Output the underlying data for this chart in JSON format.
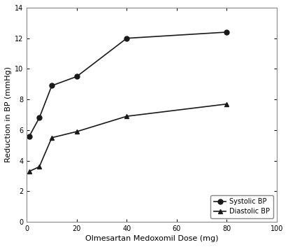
{
  "xlabel": "Olmesartan Medoxomil Dose (mg)",
  "ylabel": "Reduction in BP (mmHg)",
  "systolic": {
    "x": [
      1,
      5,
      10,
      20,
      40,
      80
    ],
    "y": [
      5.6,
      6.8,
      8.9,
      9.5,
      12.0,
      12.4
    ],
    "label": "Systolic BP",
    "marker": "o"
  },
  "diastolic": {
    "x": [
      1,
      5,
      10,
      20,
      40,
      80
    ],
    "y": [
      3.3,
      3.6,
      5.5,
      5.9,
      6.9,
      7.7
    ],
    "label": "Diastolic BP",
    "marker": "^"
  },
  "xlim": [
    0,
    100
  ],
  "ylim": [
    0,
    14
  ],
  "xticks": [
    0,
    20,
    40,
    60,
    80,
    100
  ],
  "yticks": [
    0,
    2,
    4,
    6,
    8,
    10,
    12,
    14
  ],
  "background_color": "#ffffff",
  "plot_bg_color": "#f0f0f0",
  "line_color": "#1a1a1a",
  "spine_color": "#888888",
  "legend_loc": "lower right",
  "linewidth": 1.2,
  "markersize": 5,
  "tick_fontsize": 7,
  "label_fontsize": 8,
  "legend_fontsize": 7
}
